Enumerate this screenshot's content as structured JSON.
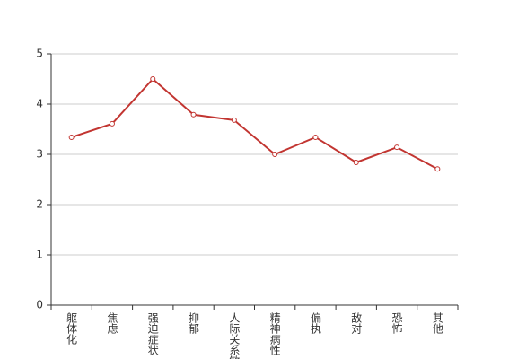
{
  "chart_data": {
    "type": "line",
    "categories": [
      "躯体化",
      "焦虑",
      "强迫症状",
      "抑郁",
      "人际关系敏感",
      "精神病性",
      "偏执",
      "敌对",
      "恐怖",
      "其他"
    ],
    "values": [
      3.34,
      3.61,
      4.5,
      3.79,
      3.68,
      3.0,
      3.34,
      2.84,
      3.14,
      2.71
    ],
    "color": "#c23531",
    "ylim": [
      0,
      5
    ],
    "yticks": [
      0,
      1,
      2,
      3,
      4,
      5
    ],
    "grid": true
  }
}
